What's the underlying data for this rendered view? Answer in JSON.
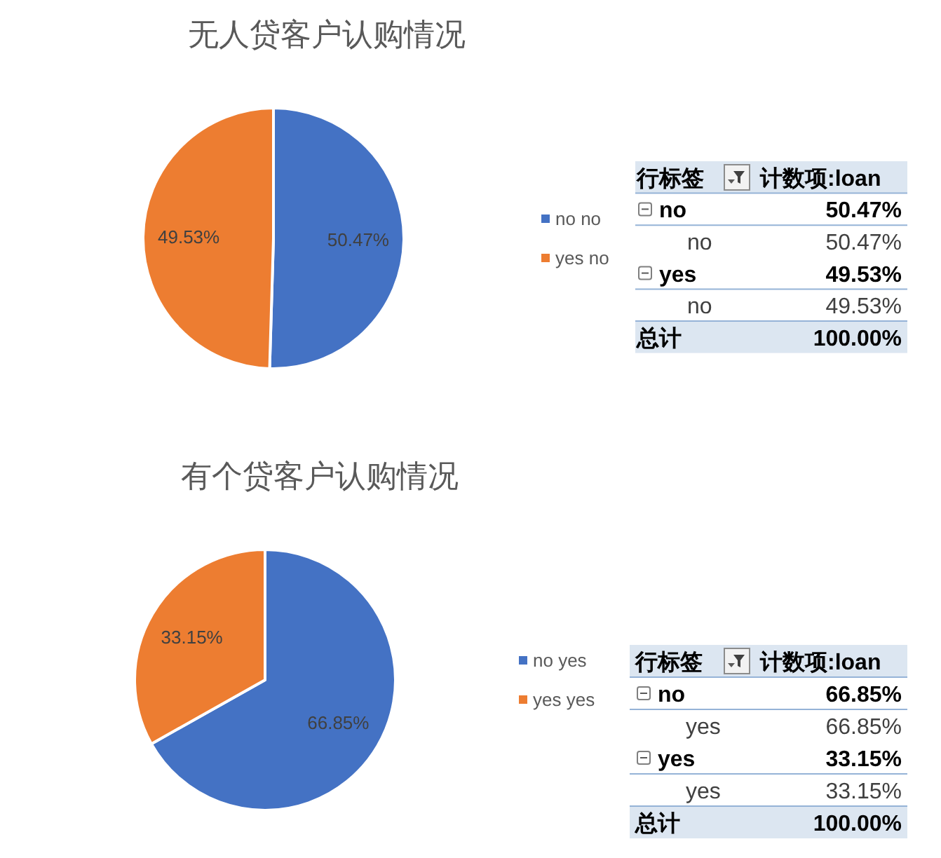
{
  "chart_data": [
    {
      "type": "pie",
      "title": "无人贷客户认购情况",
      "categories": [
        "no no",
        "yes no"
      ],
      "values": [
        50.47,
        49.53
      ],
      "colors": [
        "#4472c4",
        "#ed7d31"
      ],
      "value_labels": [
        "50.47%",
        "49.53%"
      ],
      "legend": "right"
    },
    {
      "type": "other",
      "annotations": [
        "行标签",
        "计数项:loan",
        "no",
        "50.47%",
        "no",
        "50.47%",
        "yes",
        "49.53%",
        "no",
        "49.53%",
        "总计",
        "100.00%"
      ]
    },
    {
      "type": "pie",
      "title": "有个贷客户认购情况",
      "categories": [
        "no yes",
        "yes yes"
      ],
      "values": [
        66.85,
        33.15
      ],
      "colors": [
        "#4472c4",
        "#ed7d31"
      ],
      "value_labels": [
        "66.85%",
        "33.15%"
      ],
      "legend": "right"
    },
    {
      "type": "other",
      "annotations": [
        "行标签",
        "计数项:loan",
        "no",
        "66.85%",
        "yes",
        "66.85%",
        "yes",
        "33.15%",
        "yes",
        "33.15%",
        "总计",
        "100.00%"
      ]
    }
  ]
}
